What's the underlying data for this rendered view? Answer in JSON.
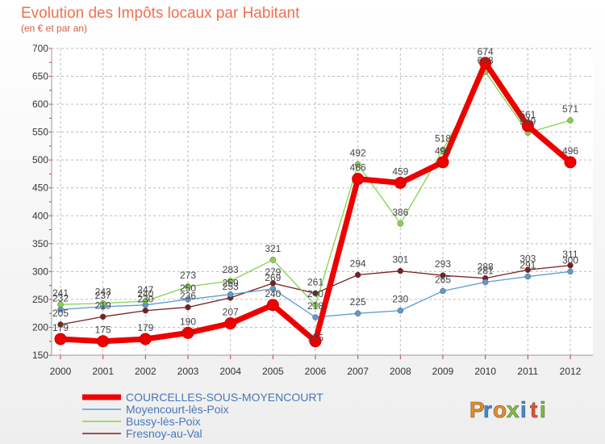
{
  "chart_data": {
    "type": "line",
    "title": "Evolution des Impôts locaux par Habitant",
    "subtitle": "(en € et par an)",
    "xlabel": "",
    "ylabel": "",
    "x": [
      "2000",
      "2001",
      "2002",
      "2003",
      "2004",
      "2005",
      "2006",
      "2007",
      "2008",
      "2009",
      "2010",
      "2011",
      "2012"
    ],
    "ylim": [
      150,
      700
    ],
    "yticks": [
      150,
      200,
      250,
      300,
      350,
      400,
      450,
      500,
      550,
      600,
      650,
      700
    ],
    "grid": true,
    "legend_position": "bottom-left",
    "series": [
      {
        "name": "COURCELLES-SOUS-MOYENCOURT",
        "color": "#ee0000",
        "emphasis": true,
        "values": [
          179,
          175,
          179,
          190,
          207,
          240,
          175,
          466,
          459,
          496,
          674,
          561,
          496
        ],
        "labels": [
          "179",
          "175",
          "179",
          "190",
          "207",
          "240",
          "175",
          "466",
          "459",
          "496",
          "674",
          "561",
          "496"
        ]
      },
      {
        "name": "Moyencourt-lès-Poix",
        "color": "#5b9bd5",
        "emphasis": false,
        "values": [
          232,
          237,
          240,
          250,
          259,
          269,
          218,
          225,
          230,
          265,
          281,
          291,
          300
        ],
        "labels": [
          "232",
          "237",
          "240",
          "250",
          "259",
          "269",
          "218",
          "225",
          "230",
          "265",
          "281",
          "291",
          "300"
        ]
      },
      {
        "name": "Bussy-lès-Poix",
        "color": "#86d24a",
        "emphasis": false,
        "values": [
          241,
          243,
          247,
          273,
          283,
          321,
          240,
          492,
          386,
          518,
          658,
          549,
          571
        ],
        "labels": [
          "241",
          "243",
          "247",
          "273",
          "283",
          "321",
          "240",
          "492",
          "386",
          "518",
          "658",
          "549",
          "571"
        ]
      },
      {
        "name": "Fresnoy-au-Val",
        "color": "#7b1f22",
        "emphasis": false,
        "values": [
          205,
          219,
          230,
          236,
          253,
          279,
          261,
          294,
          301,
          293,
          288,
          303,
          311
        ],
        "labels": [
          "205",
          "219",
          "230",
          "236",
          "253",
          "279",
          "261",
          "294",
          "301",
          "293",
          "288",
          "303",
          "311"
        ]
      }
    ]
  },
  "branding": {
    "logo_letters": [
      "P",
      "r",
      "o",
      "x",
      "i",
      "t",
      "i"
    ],
    "logo_colors": [
      "#ee8a1a",
      "#3b8fd8",
      "#ee8a1a",
      "#7fc33a",
      "#3b8fd8",
      "#ee4d2b",
      "#7fc33a"
    ]
  }
}
